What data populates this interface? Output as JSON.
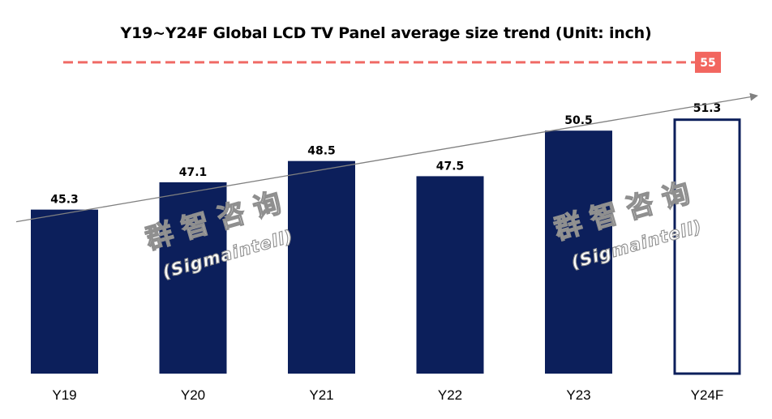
{
  "chart_data": {
    "type": "bar",
    "title": "Y19~Y24F Global LCD TV Panel average size trend (Unit: inch)",
    "categories": [
      "Y19",
      "Y20",
      "Y21",
      "Y22",
      "Y23",
      "Y24F"
    ],
    "values": [
      45.3,
      47.1,
      48.5,
      47.5,
      50.5,
      51.3
    ],
    "value_labels": [
      "45.3",
      "47.1",
      "48.5",
      "47.5",
      "50.5",
      "51.3"
    ],
    "forecast_category": "Y24F",
    "ylim": [
      34.5,
      55.9
    ],
    "xlabel": "",
    "ylabel": "",
    "grid": false,
    "reference_line": {
      "value": 55,
      "label": "55",
      "style": "dashed"
    },
    "trend_line": {
      "from": 44.5,
      "to": 52.8
    },
    "colors": {
      "bar": "#0c1f5b",
      "reference": "#f06a65",
      "reference_badge": "#f2665f",
      "trend": "#808080"
    }
  },
  "watermarks": [
    {
      "name": "群智咨询",
      "subtitle": "(Sigmaintell)"
    },
    {
      "name": "群智咨询",
      "subtitle": "(Sigmaintell)"
    }
  ]
}
